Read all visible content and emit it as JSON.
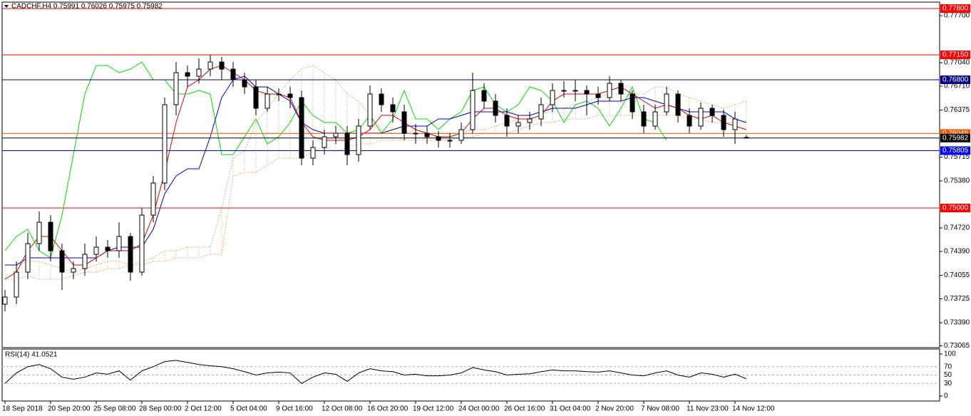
{
  "chart_data": {
    "type": "candlestick",
    "title": "CADCHF,H4 0.75991 0.76026 0.75975 0.75982",
    "categories": [
      "18 Sep 2018",
      null,
      null,
      null,
      "20 Sep 20:00",
      null,
      null,
      null,
      "25 Sep 08:00",
      null,
      null,
      null,
      "28 Sep 00:00",
      null,
      null,
      null,
      "2 Oct 12:00",
      null,
      null,
      null,
      "5 Oct 04:00",
      null,
      null,
      null,
      "9 Oct 16:00",
      null,
      null,
      null,
      "12 Oct 08:00",
      null,
      null,
      null,
      "16 Oct 20:00",
      null,
      null,
      null,
      "19 Oct 12:00",
      null,
      null,
      null,
      "24 Oct 00:00",
      null,
      null,
      null,
      "26 Oct 16:00",
      null,
      null,
      null,
      "31 Oct 04:00",
      null,
      null,
      null,
      "2 Nov 20:00",
      null,
      null,
      null,
      "7 Nov 08:00",
      null,
      null,
      null,
      "11 Nov 23:00",
      null,
      null,
      null,
      "14 Nov 12:00",
      null
    ],
    "open": [
      0.7365,
      0.7375,
      0.741,
      0.745,
      0.748,
      0.744,
      0.741,
      0.7415,
      0.7435,
      0.7445,
      0.744,
      0.746,
      0.741,
      0.749,
      0.7535,
      0.7645,
      0.769,
      0.7685,
      0.7695,
      0.7705,
      0.7695,
      0.768,
      0.767,
      0.764,
      0.766,
      0.766,
      0.7655,
      0.757,
      0.7585,
      0.76,
      0.7605,
      0.7575,
      0.7615,
      0.766,
      0.7645,
      0.7635,
      0.7605,
      0.7605,
      0.76,
      0.7595,
      0.7595,
      0.761,
      0.7665,
      0.765,
      0.763,
      0.7615,
      0.762,
      0.7625,
      0.7645,
      0.7665,
      0.7665,
      0.7665,
      0.766,
      0.7655,
      0.7675,
      0.766,
      0.7635,
      0.7615,
      0.7635,
      0.766,
      0.763,
      0.7615,
      0.764,
      0.763,
      0.761,
      0.75991
    ],
    "high": [
      0.7385,
      0.7425,
      0.7465,
      0.7495,
      0.749,
      0.745,
      0.7425,
      0.745,
      0.746,
      0.7455,
      0.748,
      0.7465,
      0.75,
      0.7545,
      0.7655,
      0.7705,
      0.77,
      0.771,
      0.7715,
      0.7712,
      0.7705,
      0.769,
      0.768,
      0.767,
      0.7668,
      0.767,
      0.7665,
      0.7595,
      0.761,
      0.7615,
      0.7615,
      0.7625,
      0.7672,
      0.7668,
      0.7655,
      0.7645,
      0.7618,
      0.7615,
      0.7608,
      0.7605,
      0.762,
      0.769,
      0.7675,
      0.766,
      0.764,
      0.763,
      0.7635,
      0.7655,
      0.7675,
      0.7678,
      0.768,
      0.7672,
      0.767,
      0.7685,
      0.768,
      0.7665,
      0.7645,
      0.7645,
      0.767,
      0.7665,
      0.764,
      0.7648,
      0.7645,
      0.7638,
      0.7635,
      0.76026
    ],
    "low": [
      0.7355,
      0.7365,
      0.74,
      0.744,
      0.7425,
      0.7385,
      0.74,
      0.7405,
      0.7425,
      0.743,
      0.743,
      0.7398,
      0.7405,
      0.748,
      0.7525,
      0.763,
      0.767,
      0.7675,
      0.7685,
      0.768,
      0.767,
      0.766,
      0.763,
      0.7635,
      0.765,
      0.764,
      0.756,
      0.756,
      0.7575,
      0.759,
      0.756,
      0.7565,
      0.761,
      0.7635,
      0.762,
      0.7595,
      0.759,
      0.759,
      0.7585,
      0.7585,
      0.759,
      0.7605,
      0.764,
      0.762,
      0.76,
      0.7605,
      0.761,
      0.7615,
      0.7635,
      0.7655,
      0.765,
      0.763,
      0.7645,
      0.765,
      0.765,
      0.7625,
      0.7605,
      0.761,
      0.763,
      0.762,
      0.7605,
      0.761,
      0.762,
      0.76,
      0.759,
      0.75975
    ],
    "close": [
      0.7375,
      0.741,
      0.745,
      0.748,
      0.744,
      0.741,
      0.7415,
      0.7435,
      0.7445,
      0.744,
      0.746,
      0.741,
      0.749,
      0.7535,
      0.7645,
      0.769,
      0.7685,
      0.7695,
      0.7705,
      0.7695,
      0.768,
      0.767,
      0.764,
      0.766,
      0.766,
      0.7655,
      0.757,
      0.7585,
      0.76,
      0.7605,
      0.7575,
      0.7615,
      0.766,
      0.7645,
      0.7635,
      0.7605,
      0.7605,
      0.76,
      0.7595,
      0.7595,
      0.761,
      0.7665,
      0.765,
      0.763,
      0.7615,
      0.762,
      0.7625,
      0.7645,
      0.7665,
      0.7665,
      0.7665,
      0.766,
      0.7655,
      0.7675,
      0.766,
      0.7635,
      0.7615,
      0.7635,
      0.766,
      0.763,
      0.7615,
      0.764,
      0.763,
      0.761,
      0.7625,
      0.75982
    ],
    "up_color": "#ffffff",
    "down_color": "#000000",
    "ylim": [
      0.7304,
      0.7789
    ],
    "yticks": [
      {
        "value": 0.777,
        "label": "0.77700"
      },
      {
        "value": 0.7704,
        "label": "0.77040"
      },
      {
        "value": 0.7671,
        "label": "0.76710"
      },
      {
        "value": 0.76375,
        "label": "0.76375"
      },
      {
        "value": 0.75715,
        "label": "0.75715"
      },
      {
        "value": 0.7538,
        "label": "0.75380"
      },
      {
        "value": 0.7472,
        "label": "0.74720"
      },
      {
        "value": 0.7439,
        "label": "0.74390"
      },
      {
        "value": 0.74055,
        "label": "0.74055"
      },
      {
        "value": 0.73725,
        "label": "0.73725"
      },
      {
        "value": 0.7339,
        "label": "0.73390"
      },
      {
        "value": 0.73065,
        "label": "0.73065"
      }
    ],
    "cloud": {
      "color": "#e9a77f",
      "values_a": [
        0.742,
        0.742,
        0.7425,
        0.7425,
        0.742,
        0.7415,
        0.741,
        0.7415,
        0.742,
        0.7425,
        0.7425,
        0.742,
        0.7425,
        0.743,
        0.744,
        0.744,
        0.7445,
        0.7445,
        0.7445,
        0.75,
        0.757,
        0.758,
        0.762,
        0.764,
        0.766,
        0.768,
        0.7695,
        0.77,
        0.769,
        0.768,
        0.766,
        0.765,
        0.763,
        0.761,
        0.7605,
        0.7605,
        0.761,
        0.7605,
        0.7605,
        0.7605,
        0.7605,
        0.761,
        0.761,
        0.7615,
        0.762,
        0.7625,
        0.7625,
        0.763,
        0.764,
        0.764,
        0.7645,
        0.765,
        0.7655,
        0.766,
        0.766,
        0.766,
        0.766,
        0.767,
        0.767,
        0.766,
        0.7655,
        0.765,
        0.7645,
        0.764,
        0.7645,
        0.765
      ],
      "values_b": [
        0.74,
        0.74,
        0.7405,
        0.74,
        0.74,
        0.74,
        0.7405,
        0.741,
        0.741,
        0.7415,
        0.7415,
        0.742,
        0.742,
        0.7425,
        0.7425,
        0.743,
        0.743,
        0.743,
        0.7435,
        0.7435,
        0.7545,
        0.755,
        0.755,
        0.756,
        0.757,
        0.757,
        0.757,
        0.758,
        0.7585,
        0.758,
        0.7585,
        0.759,
        0.759,
        0.7595,
        0.7595,
        0.7595,
        0.7595,
        0.7595,
        0.7595,
        0.7595,
        0.76,
        0.76,
        0.7605,
        0.7605,
        0.7605,
        0.761,
        0.7615,
        0.762,
        0.762,
        0.7625,
        0.7625,
        0.7625,
        0.763,
        0.763,
        0.763,
        0.763,
        0.763,
        0.763,
        0.763,
        0.763,
        0.7625,
        0.7625,
        0.762,
        0.762,
        0.762,
        0.762
      ]
    },
    "lines": [
      {
        "color": "#00dd00",
        "values": [
          0.744,
          0.746,
          0.747,
          0.744,
          0.743,
          0.749,
          0.7575,
          0.766,
          0.77,
          0.77,
          0.769,
          0.7695,
          0.7705,
          0.768,
          0.768,
          0.766,
          0.766,
          0.7665,
          0.766,
          0.7575,
          0.7575,
          0.76,
          0.7625,
          0.759,
          0.76,
          0.762,
          0.765,
          0.763,
          0.762,
          0.762,
          0.7605,
          0.761,
          0.763,
          0.7605,
          0.7625,
          0.7665,
          0.7625,
          0.7625,
          0.761,
          0.7625,
          0.7635,
          0.7665,
          0.767,
          0.7645,
          0.7635,
          0.7645,
          0.767,
          0.7665,
          0.765,
          0.762,
          0.7645,
          0.765,
          0.764,
          0.7615,
          0.764,
          0.767,
          0.7625,
          0.762,
          0.7595,
          null,
          null,
          null,
          null,
          null,
          null,
          null
        ]
      },
      {
        "color": "#0000cc",
        "values": [
          0.742,
          0.742,
          0.743,
          0.743,
          0.743,
          0.743,
          0.743,
          0.743,
          0.743,
          0.744,
          0.7445,
          0.7445,
          0.7445,
          0.747,
          0.752,
          0.7545,
          0.7555,
          0.7555,
          0.76,
          0.7655,
          0.768,
          0.7685,
          0.767,
          0.767,
          0.766,
          0.765,
          0.762,
          0.761,
          0.7605,
          0.7605,
          0.7605,
          0.7605,
          0.7605,
          0.7605,
          0.761,
          0.7615,
          0.7615,
          0.7615,
          0.7625,
          0.7625,
          0.763,
          0.7635,
          0.7635,
          0.7635,
          0.7635,
          0.763,
          0.763,
          0.7635,
          0.764,
          0.764,
          0.764,
          0.7645,
          0.765,
          0.765,
          0.765,
          0.7655,
          0.7655,
          0.765,
          0.7645,
          0.764,
          0.7635,
          0.7635,
          0.7635,
          0.7635,
          0.7625,
          0.762
        ]
      },
      {
        "color": "#dd0000",
        "values": [
          0.74,
          0.741,
          0.744,
          0.746,
          0.746,
          0.744,
          0.742,
          0.742,
          0.743,
          0.744,
          0.744,
          0.744,
          0.745,
          0.749,
          0.755,
          0.762,
          0.767,
          0.768,
          0.7695,
          0.77,
          0.769,
          0.768,
          0.7665,
          0.766,
          0.766,
          0.7655,
          0.762,
          0.76,
          0.7595,
          0.7595,
          0.7595,
          0.76,
          0.761,
          0.763,
          0.763,
          0.762,
          0.761,
          0.7605,
          0.76,
          0.76,
          0.7605,
          0.7625,
          0.764,
          0.764,
          0.763,
          0.7625,
          0.7625,
          0.763,
          0.765,
          0.766,
          0.766,
          0.766,
          0.766,
          0.7665,
          0.767,
          0.766,
          0.765,
          0.764,
          0.7645,
          0.764,
          0.763,
          0.7625,
          0.763,
          0.762,
          0.7615,
          0.761
        ]
      }
    ],
    "levels": [
      {
        "value": 0.778,
        "label": "0.77800",
        "color": "#ff0000"
      },
      {
        "value": 0.7715,
        "label": "0.77150",
        "color": "#ff0000"
      },
      {
        "value": 0.768,
        "label": "0.76800",
        "color": "#000080"
      },
      {
        "value": 0.76046,
        "label": "0.76046",
        "color": "#ff5500"
      },
      {
        "value": 0.75982,
        "label": "0.75982",
        "color": "#000000"
      },
      {
        "value": 0.75805,
        "label": "0.75805",
        "color": "#0000ff"
      },
      {
        "value": 0.75,
        "label": "0.75000",
        "color": "#ff0000"
      }
    ],
    "indicator": {
      "type": "line",
      "title": "RSI(14) 41.0521",
      "color": "#000000",
      "values": [
        30,
        55,
        70,
        75,
        65,
        45,
        40,
        45,
        55,
        52,
        60,
        38,
        60,
        70,
        82,
        85,
        80,
        75,
        72,
        70,
        65,
        58,
        50,
        55,
        57,
        55,
        30,
        45,
        55,
        52,
        35,
        55,
        65,
        60,
        58,
        50,
        52,
        48,
        48,
        50,
        55,
        68,
        62,
        58,
        50,
        52,
        53,
        58,
        62,
        60,
        60,
        58,
        57,
        60,
        55,
        50,
        48,
        55,
        60,
        50,
        45,
        55,
        52,
        45,
        52,
        41.0521
      ],
      "ylim": [
        0,
        100
      ],
      "yticks": [
        100,
        70,
        50,
        30,
        0
      ]
    }
  }
}
